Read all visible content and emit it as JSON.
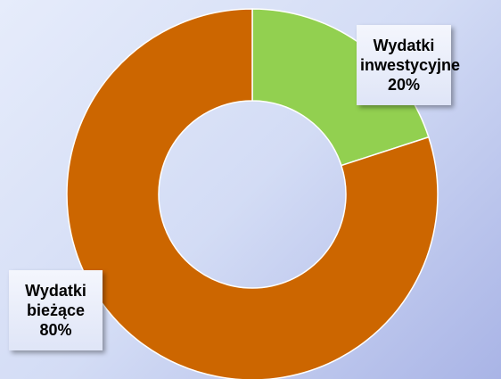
{
  "chart_data": {
    "type": "donut",
    "categories": [
      "Wydatki inwestycyjne",
      "Wydatki bieżące"
    ],
    "values": [
      20,
      80
    ],
    "value_labels": [
      "20%",
      "80%"
    ],
    "colors": [
      "#92d050",
      "#cc6600"
    ]
  }
}
